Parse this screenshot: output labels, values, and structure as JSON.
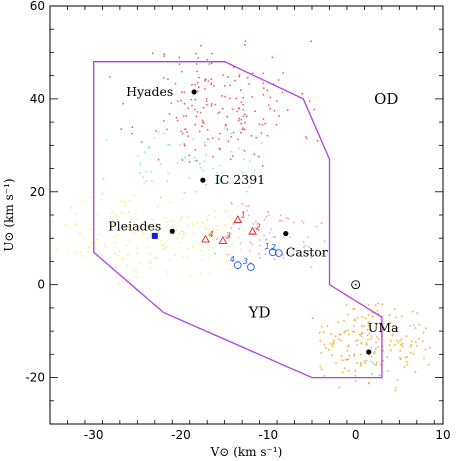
{
  "chart_data": {
    "type": "scatter",
    "xlabel": "V⊙ (km s⁻¹)",
    "ylabel": "U⊙ (km s⁻¹)",
    "xlim": [
      -35,
      10
    ],
    "ylim": [
      -30,
      60
    ],
    "xticks": [
      -30,
      -20,
      -10,
      0,
      10
    ],
    "yticks": [
      -20,
      0,
      20,
      40,
      60
    ],
    "grid": false,
    "boundary_polygon": {
      "color": "#b042e0",
      "points": [
        [
          -30,
          48
        ],
        [
          -15,
          48
        ],
        [
          -6,
          40
        ],
        [
          -3,
          27
        ],
        [
          -3,
          0
        ],
        [
          3,
          -7
        ],
        [
          3,
          -20
        ],
        [
          -5,
          -20
        ],
        [
          -22,
          -6
        ],
        [
          -30,
          7
        ]
      ]
    },
    "region_labels": [
      {
        "text": "OD",
        "x": 3.5,
        "y": 40
      },
      {
        "text": "YD",
        "x": -11,
        "y": -6
      }
    ],
    "clusters": [
      {
        "name": "Hyades",
        "x": -18.5,
        "y": 41.5,
        "label_text": "Hyades"
      },
      {
        "name": "IC 2391",
        "x": -17.5,
        "y": 22.5,
        "label_text": "IC 2391"
      },
      {
        "name": "Pleiades",
        "x": -21,
        "y": 11.5,
        "label_text": "Pleiades"
      },
      {
        "name": "Castor",
        "x": -8,
        "y": 11,
        "label_text": "Castor"
      },
      {
        "name": "UMa",
        "x": 1.5,
        "y": -14.5,
        "label_text": "UMa"
      }
    ],
    "sun": {
      "x": 0,
      "y": 0
    },
    "blue_square": {
      "x": -23,
      "y": 10.5,
      "color": "#1a1ad8"
    },
    "red_triangles": [
      {
        "label": "1",
        "x": -13.5,
        "y": 14
      },
      {
        "label": "2",
        "x": -11.8,
        "y": 11.5
      },
      {
        "label": "3",
        "x": -15.2,
        "y": 9.5
      },
      {
        "label": "4",
        "x": -17.2,
        "y": 9.8
      }
    ],
    "blue_circles": [
      {
        "label": "1",
        "x": -9.5,
        "y": 7
      },
      {
        "label": "2",
        "x": -8.8,
        "y": 6.8
      },
      {
        "label": "3",
        "x": -12,
        "y": 3.8
      },
      {
        "label": "4",
        "x": -13.5,
        "y": 4.2
      }
    ],
    "scatter_groups": [
      {
        "color": "#f06060",
        "cx": -15.5,
        "cy": 38.5,
        "sx": 4.5,
        "sy": 7,
        "n": 190,
        "seed": 11,
        "xmin": -30,
        "xmax": -4,
        "ymin": 25,
        "ymax": 57
      },
      {
        "color": "#80f0e0",
        "cx": -19,
        "cy": 26,
        "sx": 4.5,
        "sy": 3.5,
        "n": 60,
        "seed": 23,
        "xmin": -30,
        "xmax": -10,
        "ymin": 18,
        "ymax": 34
      },
      {
        "color": "#f4f070",
        "cx": -23,
        "cy": 11,
        "sx": 5.5,
        "sy": 4.5,
        "n": 180,
        "seed": 37,
        "xmin": -35,
        "xmax": -12,
        "ymin": 0,
        "ymax": 22
      },
      {
        "color": "#f0a0e0",
        "cx": -10.5,
        "cy": 11,
        "sx": 3.5,
        "sy": 3.5,
        "n": 75,
        "seed": 51,
        "xmin": -17,
        "xmax": -3,
        "ymin": 2,
        "ymax": 20
      },
      {
        "color": "#f4b040",
        "cx": 1.5,
        "cy": -13,
        "sx": 3.2,
        "sy": 4.5,
        "n": 190,
        "seed": 67,
        "xmin": -5,
        "xmax": 9,
        "ymin": -27,
        "ymax": -4
      }
    ]
  }
}
